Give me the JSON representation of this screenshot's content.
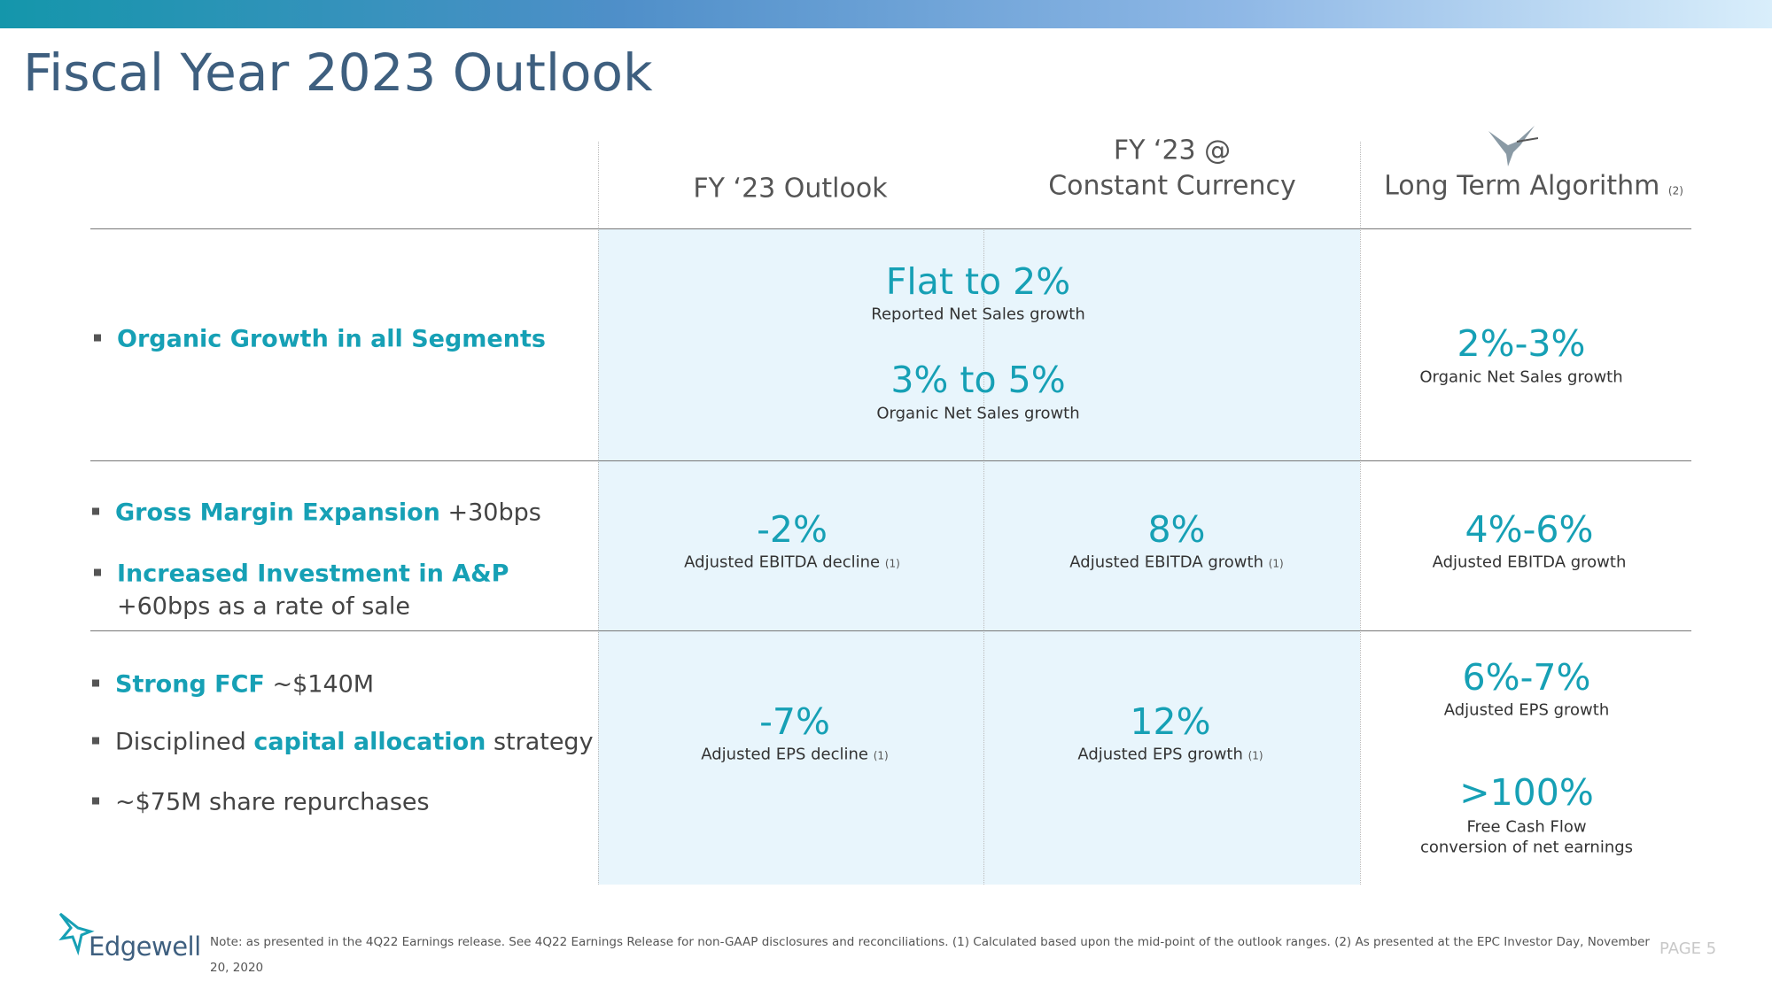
{
  "header": {
    "title": "Fiscal Year 2023 Outlook"
  },
  "table": {
    "columns": [
      {
        "label": "FY ‘23 Outlook"
      },
      {
        "lines": [
          "FY ‘23 @",
          "Constant Currency"
        ]
      },
      {
        "label": "Long Term Algorithm",
        "note": "(2)"
      }
    ],
    "rows": [
      {
        "bullets": [
          [
            "Organic Growth in all Segments"
          ]
        ],
        "merged": [
          {
            "value": "Flat to 2%",
            "caption": "Reported Net Sales growth"
          },
          {
            "value": "3% to 5%",
            "caption": "Organic Net Sales growth"
          }
        ],
        "long_term": [
          {
            "value": "2%-3%",
            "caption": "Organic Net Sales growth"
          }
        ]
      },
      {
        "bullets": [
          [
            "Gross Margin Expansion",
            "+30bps"
          ],
          [
            "Increased Investment in A&P",
            "+60bps as a rate of sale"
          ]
        ],
        "outlook": {
          "value": "-2%",
          "caption": "Adjusted EBITDA decline",
          "note": "(1)"
        },
        "constant_currency": {
          "value": "8%",
          "caption": "Adjusted EBITDA growth",
          "note": "(1)"
        },
        "long_term": [
          {
            "value": "4%-6%",
            "caption": "Adjusted EBITDA growth"
          }
        ]
      },
      {
        "bullets": [
          [
            "Strong FCF",
            "~$140M"
          ],
          [
            "Disciplined",
            "capital allocation",
            "strategy"
          ],
          [
            "~$75M share repurchases"
          ]
        ],
        "outlook": {
          "value": "-7%",
          "caption": "Adjusted EPS decline",
          "note": "(1)"
        },
        "constant_currency": {
          "value": "12%",
          "caption": "Adjusted EPS growth",
          "note": "(1)"
        },
        "long_term": [
          {
            "value": "6%-7%",
            "caption": "Adjusted EPS growth"
          },
          {
            "value": ">100%",
            "caption_lines": [
              "Free Cash Flow",
              "conversion of net earnings"
            ]
          }
        ]
      }
    ]
  },
  "footer": {
    "logo": "Edgewell",
    "note": "Note: as presented in the 4Q22 Earnings release.  See 4Q22 Earnings Release for non-GAAP disclosures and reconciliations. (1) Calculated based upon the mid-point of the outlook ranges. (2) As presented at the EPC Investor Day, November 20, 2020",
    "page": "PAGE 5"
  }
}
